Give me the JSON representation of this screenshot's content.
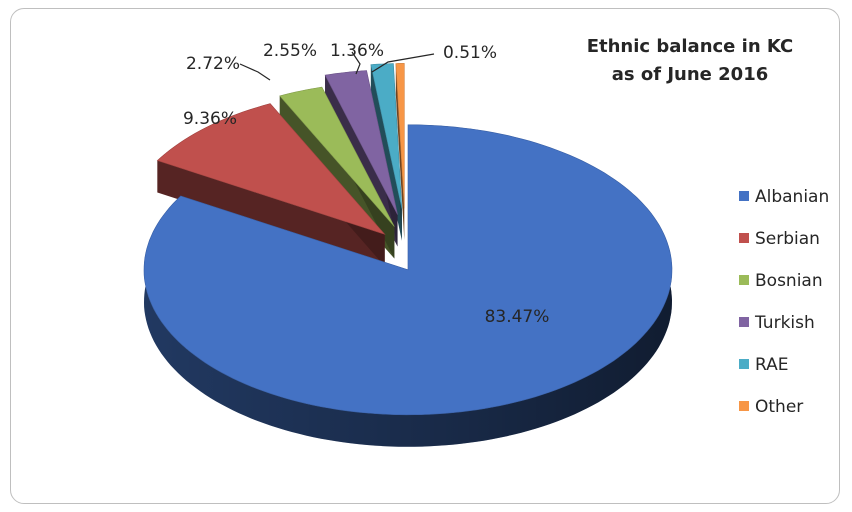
{
  "chart_data": {
    "type": "pie",
    "title_lines": [
      "Ethnic balance in KC",
      "as of June 2016"
    ],
    "categories": [
      "Albanian",
      "Serbian",
      "Bosnian",
      "Turkish",
      "RAE",
      "Other"
    ],
    "values": [
      83.47,
      9.36,
      2.72,
      2.55,
      1.36,
      0.51
    ],
    "labels": [
      "83.47%",
      "9.36%",
      "2.72%",
      "2.55%",
      "1.36%",
      "0.51%"
    ],
    "colors": [
      "#4472c4",
      "#c0504d",
      "#9bbb59",
      "#8064a2",
      "#4bacc6",
      "#f79646"
    ],
    "legend_position": "right",
    "style": "3d-exploded"
  }
}
